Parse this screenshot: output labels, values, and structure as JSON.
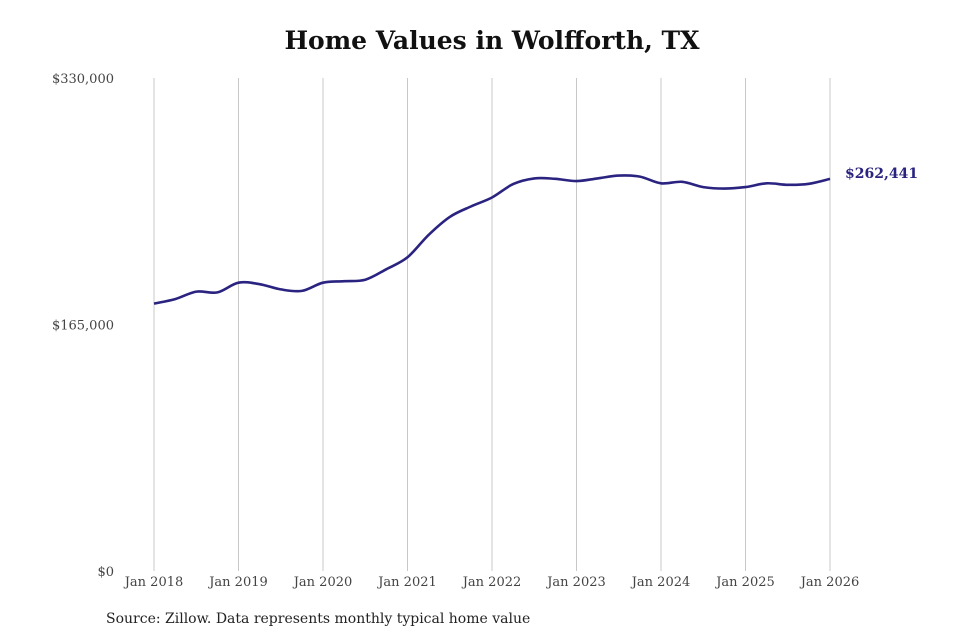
{
  "chart_data": {
    "type": "line",
    "title": "Home Values in Wolfforth, TX",
    "source": "Source: Zillow. Data represents monthly typical home value",
    "ylim": [
      0,
      330000
    ],
    "y_ticks": [
      "$0",
      "$165,000",
      "$330,000"
    ],
    "y_tick_values": [
      0,
      165000,
      330000
    ],
    "x_ticks": [
      "Jan 2018",
      "Jan 2019",
      "Jan 2020",
      "Jan 2021",
      "Jan 2022",
      "Jan 2023",
      "Jan 2024",
      "Jan 2025",
      "Jan 2026"
    ],
    "grid": "vertical",
    "line_color": "#2a2380",
    "end_label": "$262,441",
    "series": [
      {
        "x": [
          "2018-01",
          "2018-04",
          "2018-07",
          "2018-10",
          "2019-01",
          "2019-04",
          "2019-07",
          "2019-10",
          "2020-01",
          "2020-04",
          "2020-07",
          "2020-10",
          "2021-01",
          "2021-04",
          "2021-07",
          "2021-10",
          "2022-01",
          "2022-04",
          "2022-07",
          "2022-10",
          "2023-01",
          "2023-04",
          "2023-07",
          "2023-10",
          "2024-01",
          "2024-04",
          "2024-07",
          "2024-10",
          "2025-01",
          "2025-04",
          "2025-07",
          "2025-10",
          "2026-01"
        ],
        "values": [
          179000,
          182000,
          187000,
          186500,
          193000,
          192000,
          188500,
          187500,
          193000,
          194000,
          195000,
          202000,
          210000,
          225000,
          237000,
          244000,
          250000,
          259000,
          262800,
          262500,
          261000,
          262800,
          264700,
          264000,
          259500,
          260500,
          257000,
          256000,
          257000,
          259500,
          258500,
          259200,
          262441
        ]
      }
    ]
  }
}
